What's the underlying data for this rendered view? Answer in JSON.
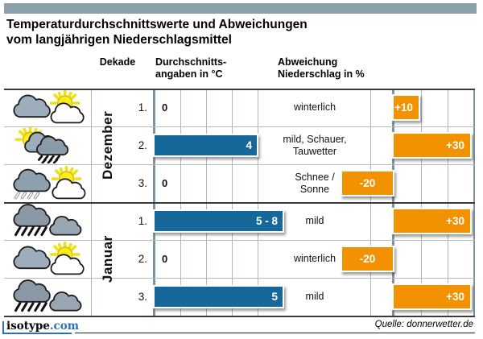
{
  "title": {
    "line1": "Temperaturdurchschnittswerte und Abweichungen",
    "line2": "vom langjährigen Niederschlagsmittel"
  },
  "columns": {
    "dekade": "Dekade",
    "temp": "Durchschnitts-\nangaben in °C",
    "precip": "Abweichung\nNiederschlag in %"
  },
  "months": [
    {
      "label": "Dezember"
    },
    {
      "label": "Januar"
    }
  ],
  "rows": [
    {
      "month": "Dezember",
      "decade": "1.",
      "icon": "cloud-sun-icon",
      "temp_label": "0",
      "temp_c": 0,
      "condition": "winterlich",
      "precip_label": "+10",
      "precip_pct": 10
    },
    {
      "month": "Dezember",
      "decade": "2.",
      "icon": "sun-shower-icon",
      "temp_label": "4",
      "temp_c": 4,
      "condition": "mild, Schauer,\nTauwetter",
      "precip_label": "+30",
      "precip_pct": 30
    },
    {
      "month": "Dezember",
      "decade": "3.",
      "icon": "snow-sun-icon",
      "temp_label": "0",
      "temp_c": 0,
      "condition": "Schnee /\nSonne",
      "precip_label": "-20",
      "precip_pct": -20
    },
    {
      "month": "Januar",
      "decade": "1.",
      "icon": "rain-clouds-icon",
      "temp_label": "5 - 8",
      "temp_c": 5,
      "condition": "mild",
      "precip_label": "+30",
      "precip_pct": 30
    },
    {
      "month": "Januar",
      "decade": "2.",
      "icon": "cloud-sun-icon",
      "temp_label": "0",
      "temp_c": 0,
      "condition": "winterlich",
      "precip_label": "-20",
      "precip_pct": -20
    },
    {
      "month": "Januar",
      "decade": "3.",
      "icon": "rain-clouds-icon",
      "temp_label": "5",
      "temp_c": 5,
      "condition": "mild",
      "precip_label": "+30",
      "precip_pct": 30
    }
  ],
  "footer": {
    "brand_name": "isotype",
    "brand_tld": ".com",
    "source": "Quelle: donnerwetter.de"
  },
  "colors": {
    "temp_bar": "#16689b",
    "precip_bar": "#f39200",
    "header_accent": "#8d9fa9",
    "brand_blue": "#2e6fb7"
  },
  "chart_data": {
    "type": "bar",
    "title": "Temperaturdurchschnittswerte und Abweichungen vom langjährigen Niederschlagsmittel",
    "categories": [
      "Dezember 1.",
      "Dezember 2.",
      "Dezember 3.",
      "Januar 1.",
      "Januar 2.",
      "Januar 3."
    ],
    "series": [
      {
        "name": "Durchschnittsangaben in °C",
        "values": [
          0,
          4,
          0,
          5,
          0,
          5
        ],
        "value_labels": [
          "0",
          "4",
          "0",
          "5 - 8",
          "0",
          "5"
        ],
        "unit": "°C",
        "axis_range": [
          0,
          5
        ],
        "gridline_step": 1
      },
      {
        "name": "Abweichung Niederschlag in %",
        "values": [
          10,
          30,
          -20,
          30,
          -20,
          30
        ],
        "value_labels": [
          "+10",
          "+30",
          "-20",
          "+30",
          "-20",
          "+30"
        ],
        "unit": "%",
        "axis_range": [
          -20,
          30
        ],
        "gridline_step": 10
      }
    ],
    "conditions": [
      "winterlich",
      "mild, Schauer, Tauwetter",
      "Schnee / Sonne",
      "mild",
      "winterlich",
      "mild"
    ],
    "grid": true,
    "orientation": "horizontal",
    "source": "Quelle: donnerwetter.de"
  }
}
